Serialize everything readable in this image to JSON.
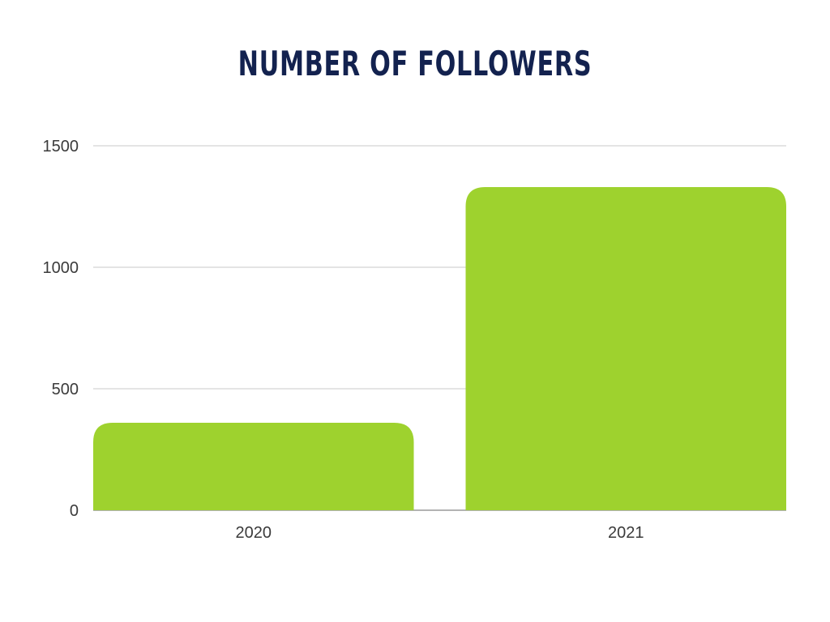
{
  "chart_data": {
    "type": "bar",
    "title": "NUMBER OF FOLLOWERS",
    "xlabel": "",
    "ylabel": "",
    "categories": [
      "2020",
      "2021"
    ],
    "values": [
      360,
      1330
    ],
    "ylim": [
      0,
      1500
    ],
    "yticks": [
      "0",
      "500",
      "1000",
      "1500"
    ],
    "grid": true,
    "legend": "none",
    "colors": {
      "bar": "#9ed22e",
      "title": "#13224f",
      "grid": "#dcdcdc",
      "axis": "#9a9a9a",
      "text": "#3b3b3b"
    }
  }
}
